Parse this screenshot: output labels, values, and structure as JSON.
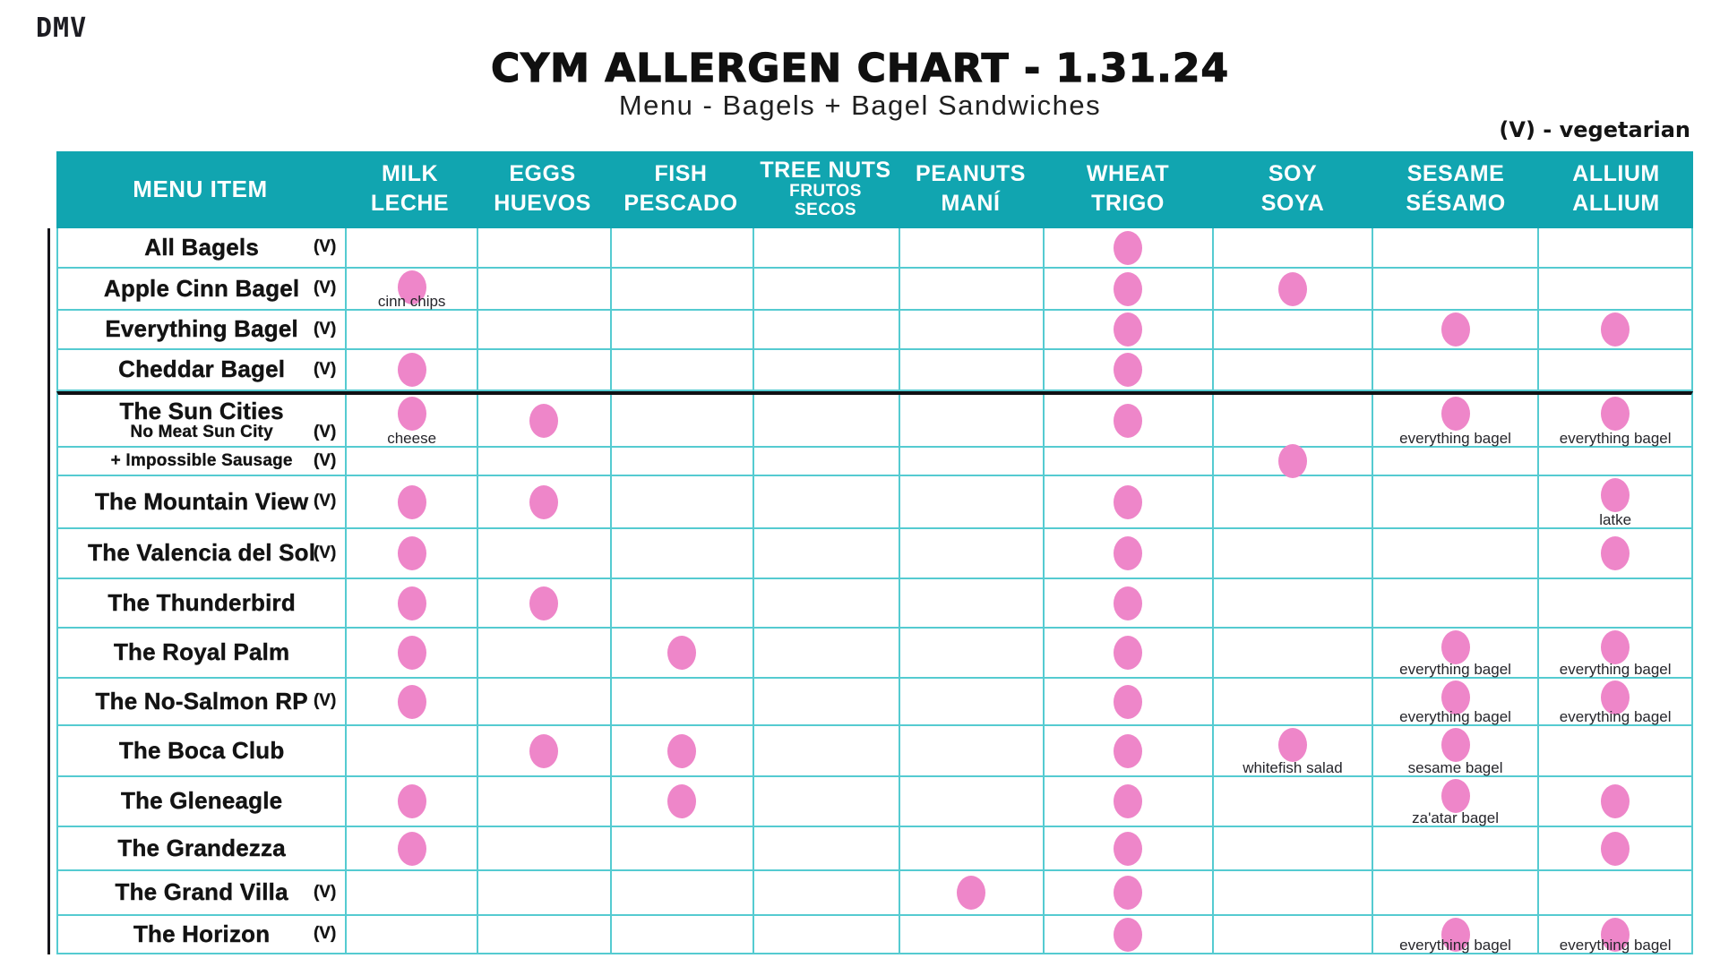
{
  "page": {
    "logo": "DMV",
    "title": "CYM ALLERGEN CHART - 1.31.24",
    "subtitle": "Menu - Bagels + Bagel Sandwiches",
    "legend": "(V) - vegetarian",
    "veg_mark": "(V)"
  },
  "colors": {
    "header_teal": "#11a5b0",
    "grid_line": "#55cbd1",
    "dot_pink": "#ee86c9",
    "text_black": "#131313"
  },
  "chart_data": {
    "type": "table",
    "title": "CYM ALLERGEN CHART - 1.31.24",
    "menu_header": "MENU ITEM",
    "columns": [
      {
        "key": "milk",
        "en": "MILK",
        "es": "LECHE"
      },
      {
        "key": "eggs",
        "en": "EGGS",
        "es": "HUEVOS"
      },
      {
        "key": "fish",
        "en": "FISH",
        "es": "PESCADO"
      },
      {
        "key": "treenuts",
        "en": "TREE NUTS",
        "es": "FRUTOS SECOS",
        "stacked": true
      },
      {
        "key": "peanuts",
        "en": "PEANUTS",
        "es": "MANÍ"
      },
      {
        "key": "wheat",
        "en": "WHEAT",
        "es": "TRIGO"
      },
      {
        "key": "soy",
        "en": "SOY",
        "es": "SOYA"
      },
      {
        "key": "sesame",
        "en": "SESAME",
        "es": "SÉSAMO"
      },
      {
        "key": "allium",
        "en": "ALLIUM",
        "es": "ALLIUM"
      }
    ],
    "rows": [
      {
        "name": "All Bagels",
        "veg": true,
        "cells": {
          "wheat": {}
        }
      },
      {
        "name": "Apple Cinn Bagel",
        "veg": true,
        "cells": {
          "milk": {
            "note": "cinn chips"
          },
          "wheat": {},
          "soy": {}
        }
      },
      {
        "name": "Everything Bagel",
        "veg": true,
        "cells": {
          "wheat": {},
          "sesame": {},
          "allium": {}
        }
      },
      {
        "name": "Cheddar Bagel",
        "veg": true,
        "cells": {
          "milk": {},
          "wheat": {}
        }
      },
      {
        "name": "The Sun Cities",
        "sub": "No Meat Sun City",
        "sub_veg": true,
        "section_start": true,
        "cells": {
          "milk": {
            "note": "cheese"
          },
          "eggs": {},
          "wheat": {},
          "sesame": {
            "note": "everything bagel"
          },
          "allium": {
            "note": "everything bagel"
          }
        }
      },
      {
        "name": "+ Impossible Sausage",
        "veg": true,
        "compact": true,
        "cells": {
          "soy": {}
        }
      },
      {
        "name": "The Mountain View",
        "veg": true,
        "cells": {
          "milk": {},
          "eggs": {},
          "wheat": {},
          "allium": {
            "note": "latke"
          }
        }
      },
      {
        "name": "The Valencia del Sol",
        "veg": true,
        "cells": {
          "milk": {},
          "wheat": {},
          "allium": {}
        }
      },
      {
        "name": "The Thunderbird",
        "cells": {
          "milk": {},
          "eggs": {},
          "wheat": {}
        }
      },
      {
        "name": "The Royal Palm",
        "cells": {
          "milk": {},
          "fish": {},
          "wheat": {},
          "sesame": {
            "note": "everything bagel"
          },
          "allium": {
            "note": "everything bagel"
          }
        }
      },
      {
        "name": "The No-Salmon RP",
        "veg": true,
        "cells": {
          "milk": {},
          "wheat": {},
          "sesame": {
            "note": "everything bagel"
          },
          "allium": {
            "note": "everything bagel"
          }
        }
      },
      {
        "name": "The Boca Club",
        "cells": {
          "eggs": {},
          "fish": {},
          "wheat": {},
          "soy": {
            "note": "whitefish salad"
          },
          "sesame": {
            "note": "sesame bagel"
          }
        }
      },
      {
        "name": "The Gleneagle",
        "cells": {
          "milk": {},
          "fish": {},
          "wheat": {},
          "sesame": {
            "note": "za'atar bagel"
          },
          "allium": {}
        }
      },
      {
        "name": "The Grandezza",
        "cells": {
          "milk": {},
          "wheat": {},
          "allium": {}
        }
      },
      {
        "name": "The Grand Villa",
        "veg": true,
        "cells": {
          "peanuts": {},
          "wheat": {}
        }
      },
      {
        "name": "The Horizon",
        "veg": true,
        "cells": {
          "wheat": {},
          "sesame": {
            "note": "everything bagel"
          },
          "allium": {
            "note": "everything bagel"
          }
        }
      }
    ]
  }
}
